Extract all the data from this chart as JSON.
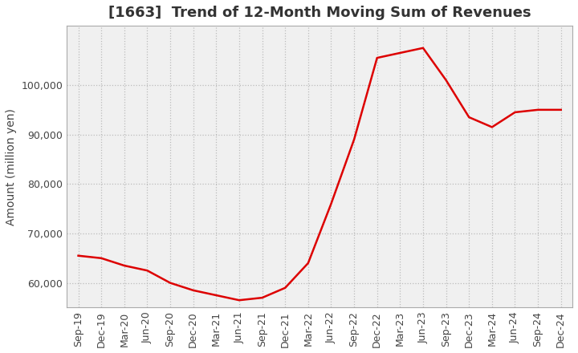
{
  "title": "[1663]  Trend of 12-Month Moving Sum of Revenues",
  "ylabel": "Amount (million yen)",
  "line_color": "#dd0000",
  "background_color": "#ffffff",
  "plot_bg_color": "#f0f0f0",
  "grid_color": "#bbbbbb",
  "x_labels": [
    "Sep-19",
    "Dec-19",
    "Mar-20",
    "Jun-20",
    "Sep-20",
    "Dec-20",
    "Mar-21",
    "Jun-21",
    "Sep-21",
    "Dec-21",
    "Mar-22",
    "Jun-22",
    "Sep-22",
    "Dec-22",
    "Mar-23",
    "Jun-23",
    "Sep-23",
    "Dec-23",
    "Mar-24",
    "Jun-24",
    "Sep-24",
    "Dec-24"
  ],
  "y_values": [
    65500,
    65000,
    63500,
    62500,
    60000,
    58500,
    57500,
    56500,
    57000,
    59000,
    64000,
    76000,
    89000,
    105500,
    106500,
    107500,
    101000,
    93500,
    91500,
    94500,
    95000,
    95000
  ],
  "ylim": [
    55000,
    112000
  ],
  "yticks": [
    60000,
    70000,
    80000,
    90000,
    100000
  ],
  "title_fontsize": 13,
  "axis_fontsize": 10,
  "tick_fontsize": 9
}
